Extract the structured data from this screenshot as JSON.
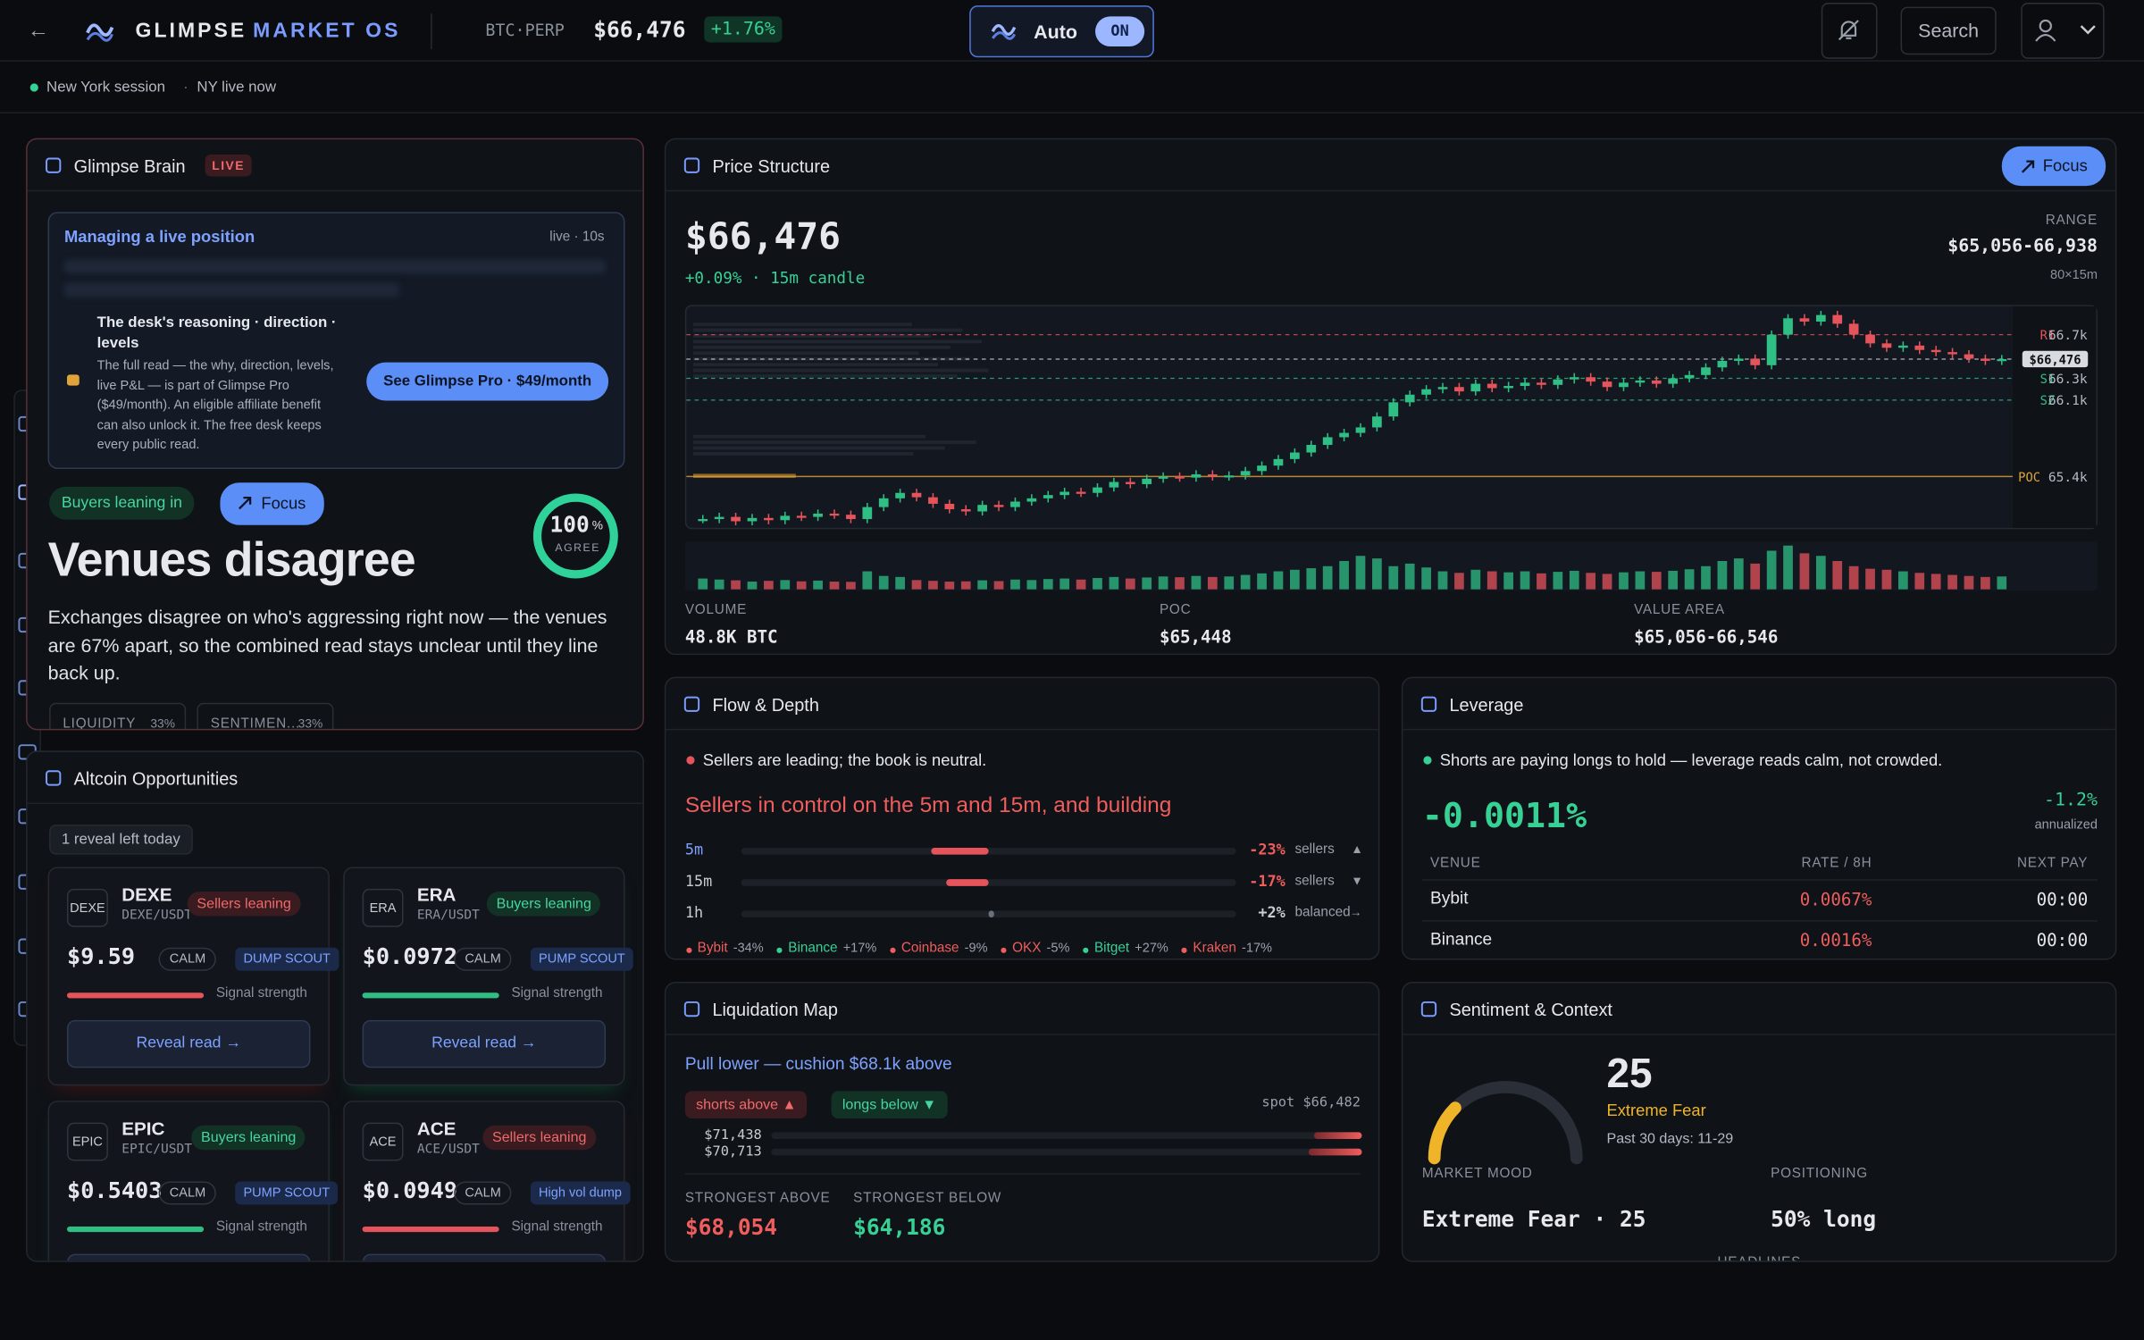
{
  "header": {
    "back": "←",
    "brand": "GLIMPSE",
    "brand_accent": "MARKET OS",
    "symbol": "BTC·PERP",
    "price": "$66,476",
    "change": "+1.76%",
    "auto": "Auto",
    "auto_state": "ON",
    "search": "Search"
  },
  "session": {
    "location": "New York session",
    "status": "NY live now"
  },
  "brain": {
    "title": "Glimpse Brain",
    "badge": "LIVE",
    "card_title": "Managing a live position",
    "card_meta": "live · 10s",
    "lock_title": "The desk's reasoning · direction · levels",
    "lock_text": "The full read — the why, direction, levels, live P&L — is part of Glimpse Pro ($49/month). An eligible affiliate benefit can also unlock it. The free desk keeps every public read.",
    "cta": "See Glimpse Pro · $49/month",
    "pill": "Buyers leaning in",
    "focus": "Focus",
    "gauge": {
      "value": 100,
      "unit": "%",
      "label": "AGREE",
      "scale": [
        0,
        100
      ]
    },
    "headline": "Venues disagree",
    "body": "Exchanges disagree on who's aggressing right now — the venues are 67% apart, so the combined read stays unclear until they line back up.",
    "chips": [
      {
        "label": "LIQUIDITY",
        "value": "33%"
      },
      {
        "label": "SENTIMEN...",
        "value": "33%"
      }
    ]
  },
  "altcoins": {
    "title": "Altcoin Opportunities",
    "reveals": "1 reveal left today",
    "strength_label": "Signal strength",
    "button": "Reveal read →",
    "cards": [
      {
        "icon": "DEXE",
        "name": "DEXE",
        "pair": "DEXE/USDT",
        "lean": "Sellers leaning",
        "side": "sell",
        "price": "$9.59",
        "regime": "CALM",
        "tag": "DUMP SCOUT",
        "strength": 56
      },
      {
        "icon": "ERA",
        "name": "ERA",
        "pair": "ERA/USDT",
        "lean": "Buyers leaning",
        "side": "buy",
        "price": "$0.0972",
        "regime": "CALM",
        "tag": "PUMP SCOUT",
        "strength": 56
      },
      {
        "icon": "EPIC",
        "name": "EPIC",
        "pair": "EPIC/USDT",
        "lean": "Buyers leaning",
        "side": "buy",
        "price": "$0.5403",
        "regime": "CALM",
        "tag": "PUMP SCOUT",
        "strength": 56
      },
      {
        "icon": "ACE",
        "name": "ACE",
        "pair": "ACE/USDT",
        "lean": "Sellers leaning",
        "side": "sell",
        "price": "$0.0949",
        "regime": "CALM",
        "tag": "High vol dump",
        "strength": 56
      }
    ]
  },
  "price_structure": {
    "title": "Price Structure",
    "focus": "Focus",
    "price": "$66,476",
    "change": "+0.09% · 15m candle",
    "range_label": "RANGE",
    "range": "$65,056-66,938",
    "range_meta": "80×15m",
    "stats": [
      {
        "label": "VOLUME",
        "value": "48.8K BTC"
      },
      {
        "label": "POC",
        "value": "$65,448"
      },
      {
        "label": "VALUE AREA",
        "value": "$65,056-66,546"
      }
    ],
    "chart": {
      "type": "candlestick",
      "ylim": [
        64930,
        66960
      ],
      "closes": [
        65010,
        65030,
        64990,
        65020,
        65000,
        65040,
        65030,
        65060,
        65050,
        65010,
        65120,
        65200,
        65250,
        65210,
        65150,
        65100,
        65080,
        65140,
        65120,
        65170,
        65200,
        65230,
        65260,
        65250,
        65300,
        65350,
        65330,
        65380,
        65400,
        65390,
        65420,
        65400,
        65410,
        65450,
        65500,
        65560,
        65620,
        65690,
        65760,
        65800,
        65850,
        65950,
        66080,
        66150,
        66200,
        66220,
        66180,
        66250,
        66210,
        66230,
        66260,
        66240,
        66290,
        66310,
        66270,
        66220,
        66260,
        66280,
        66250,
        66300,
        66330,
        66400,
        66460,
        66480,
        66420,
        66700,
        66850,
        66820,
        66880,
        66800,
        66700,
        66620,
        66580,
        66600,
        66560,
        66540,
        66520,
        66480,
        66460,
        66476
      ],
      "volumes": [
        420,
        380,
        350,
        300,
        330,
        360,
        310,
        340,
        300,
        290,
        700,
        520,
        480,
        360,
        330,
        300,
        310,
        350,
        320,
        380,
        360,
        400,
        420,
        380,
        440,
        480,
        420,
        460,
        500,
        470,
        520,
        480,
        500,
        560,
        620,
        700,
        760,
        820,
        900,
        1100,
        1300,
        1200,
        900,
        1000,
        850,
        700,
        640,
        760,
        700,
        660,
        700,
        620,
        680,
        720,
        640,
        600,
        660,
        700,
        680,
        720,
        780,
        900,
        1100,
        1200,
        1000,
        1500,
        1700,
        1400,
        1300,
        1100,
        900,
        800,
        760,
        700,
        640,
        600,
        560,
        520,
        480,
        500
      ],
      "up_color": "#2fbf85",
      "down_color": "#e5535b",
      "levels": [
        {
          "name": "R1",
          "value": 66700,
          "label": "66.7k",
          "color": "#e5535b"
        },
        {
          "value": 66476,
          "label": "$66,476",
          "color": "#d8dbe2"
        },
        {
          "name": "S1",
          "value": 66300,
          "label": "66.3k",
          "color": "#2fbf85"
        },
        {
          "name": "S2",
          "value": 66100,
          "label": "66.1k",
          "color": "#2fbf85"
        },
        {
          "name": "POC",
          "value": 65400,
          "label": "65.4k",
          "color": "#e0a43a"
        }
      ]
    }
  },
  "flow": {
    "title": "Flow & Depth",
    "status": "Sellers are leading; the book is neutral.",
    "headline": "Sellers in control on the 5m and 15m, and building",
    "xlim": [
      -100,
      100
    ],
    "rows": [
      {
        "tf": "5m",
        "value": -23,
        "label": "-23%",
        "state": "sellers",
        "arrow": "▲"
      },
      {
        "tf": "15m",
        "value": -17,
        "label": "-17%",
        "state": "sellers",
        "arrow": "▼"
      },
      {
        "tf": "1h",
        "value": 2,
        "label": "+2%",
        "state": "balanced",
        "arrow": "→"
      }
    ],
    "venues": [
      {
        "name": "Bybit",
        "value": -34,
        "label": "-34%"
      },
      {
        "name": "Binance",
        "value": 17,
        "label": "+17%"
      },
      {
        "name": "Coinbase",
        "value": -9,
        "label": "-9%"
      },
      {
        "name": "OKX",
        "value": -5,
        "label": "-5%"
      },
      {
        "name": "Bitget",
        "value": 27,
        "label": "+27%"
      },
      {
        "name": "Kraken",
        "value": -17,
        "label": "-17%"
      }
    ]
  },
  "leverage": {
    "title": "Leverage",
    "status": "Shorts are paying longs to hold — leverage reads calm, not crowded.",
    "rate": "-0.0011%",
    "annualized": "-1.2%",
    "annualized_label": "annualized",
    "columns": [
      "VENUE",
      "RATE / 8H",
      "NEXT PAY"
    ],
    "rows": [
      [
        "Bybit",
        "0.0067%",
        "00:00"
      ],
      [
        "Binance",
        "0.0016%",
        "00:00"
      ]
    ]
  },
  "liquidation": {
    "title": "Liquidation Map",
    "headline": "Pull lower — cushion $68.1k above",
    "shorts": "shorts above ▲",
    "longs": "longs below ▼",
    "spot": "spot $66,482",
    "scale": [
      0,
      100
    ],
    "rows": [
      {
        "price": "$71,438",
        "depth": 8
      },
      {
        "price": "$70,713",
        "depth": 9
      }
    ],
    "stats": [
      {
        "label": "STRONGEST ABOVE",
        "value": "$68,054",
        "side": "sell"
      },
      {
        "label": "STRONGEST BELOW",
        "value": "$64,186",
        "side": "buy"
      }
    ]
  },
  "sentiment": {
    "title": "Sentiment & Context",
    "value": 25,
    "scale": [
      0,
      100
    ],
    "mood": "Extreme Fear",
    "range": "Past 30 days: 11-29",
    "mood_label": "MARKET MOOD",
    "mood_value": "Extreme Fear · 25",
    "positioning_label": "POSITIONING",
    "positioning_value": "50% long",
    "headlines": "HEADLINES"
  }
}
